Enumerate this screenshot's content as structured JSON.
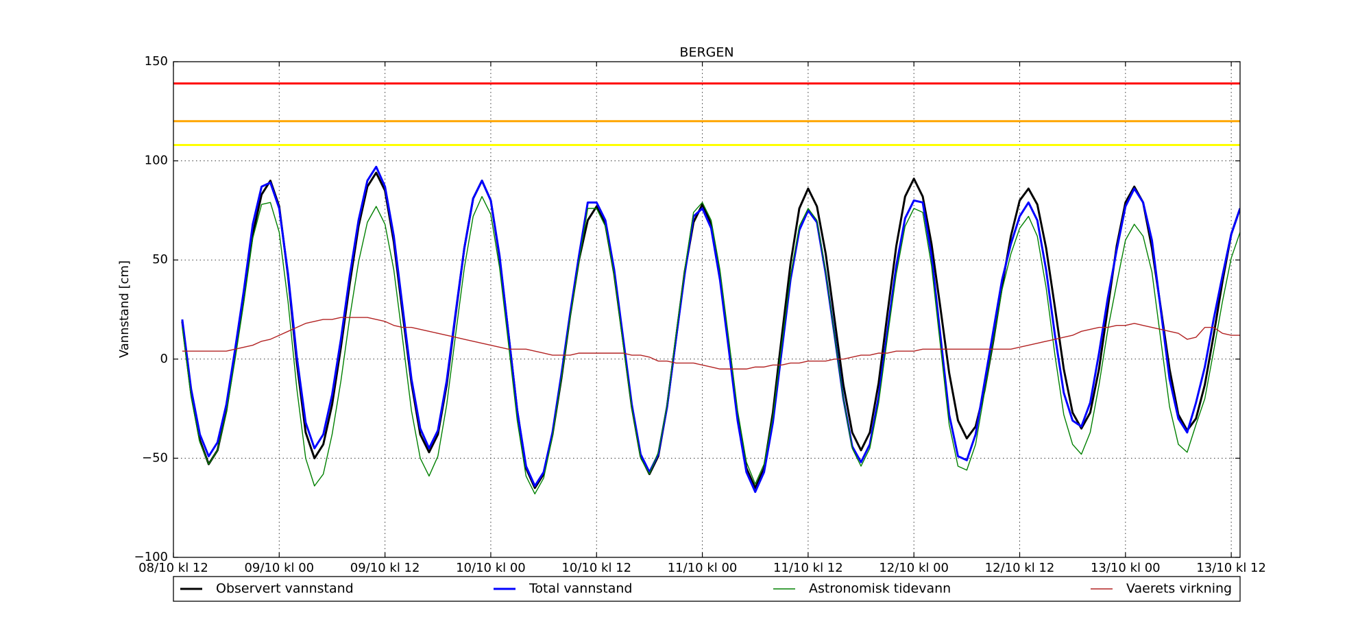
{
  "chart_data": {
    "type": "line",
    "title": "BERGEN",
    "y_label": "Vannstand [cm]",
    "grid": true,
    "legend_position": "below",
    "xlim": [
      0,
      121
    ],
    "xticks": [
      {
        "value": 0,
        "label": "08/10 kl 12"
      },
      {
        "value": 12,
        "label": "09/10 kl 00"
      },
      {
        "value": 24,
        "label": "09/10 kl 12"
      },
      {
        "value": 36,
        "label": "10/10 kl 00"
      },
      {
        "value": 48,
        "label": "10/10 kl 12"
      },
      {
        "value": 60,
        "label": "11/10 kl 00"
      },
      {
        "value": 72,
        "label": "11/10 kl 12"
      },
      {
        "value": 84,
        "label": "12/10 kl 00"
      },
      {
        "value": 96,
        "label": "12/10 kl 12"
      },
      {
        "value": 108,
        "label": "13/10 kl 00"
      },
      {
        "value": 120,
        "label": "13/10 kl 12"
      }
    ],
    "ylim": [
      -100,
      150
    ],
    "yticks": [
      {
        "value": -100,
        "label": "−100"
      },
      {
        "value": -50,
        "label": "−50"
      },
      0,
      50,
      100,
      150
    ],
    "reference_lines": [
      {
        "value": 139,
        "color": "#ff0000"
      },
      {
        "value": 120,
        "color": "#ffa500"
      },
      {
        "value": 108,
        "color": "#ffff00"
      }
    ],
    "x": [
      1,
      2,
      3,
      4,
      5,
      6,
      7,
      8,
      9,
      10,
      11,
      12,
      13,
      14,
      15,
      16,
      17,
      18,
      19,
      20,
      21,
      22,
      23,
      24,
      25,
      26,
      27,
      28,
      29,
      30,
      31,
      32,
      33,
      34,
      35,
      36,
      37,
      38,
      39,
      40,
      41,
      42,
      43,
      44,
      45,
      46,
      47,
      48,
      49,
      50,
      51,
      52,
      53,
      54,
      55,
      56,
      57,
      58,
      59,
      60,
      61,
      62,
      63,
      64,
      65,
      66,
      67,
      68,
      69,
      70,
      71,
      72,
      73,
      74,
      75,
      76,
      77,
      78,
      79,
      80,
      81,
      82,
      83,
      84,
      85,
      86,
      87,
      88,
      89,
      90,
      91,
      92,
      93,
      94,
      95,
      96,
      97,
      98,
      99,
      100,
      101,
      102,
      103,
      104,
      105,
      106,
      107,
      108,
      109,
      110,
      111,
      112,
      113,
      114,
      115,
      116,
      117,
      118,
      119,
      120,
      121
    ],
    "series": [
      {
        "name": "Observert vannstand",
        "color": "#000000",
        "width": 3,
        "values": [
          19,
          -17,
          -41,
          -53,
          -46,
          -26,
          3,
          34,
          63,
          83,
          90,
          77,
          42,
          -2,
          -37,
          -50,
          -43,
          -23,
          6,
          38,
          67,
          87,
          94,
          85,
          59,
          23,
          -12,
          -38,
          -47,
          -38,
          -13,
          22,
          56,
          81,
          90,
          80,
          51,
          13,
          -26,
          -55,
          -65,
          -58,
          -38,
          -10,
          22,
          50,
          70,
          77,
          68,
          43,
          10,
          -24,
          -49,
          -58,
          -49,
          -24,
          10,
          44,
          69,
          78,
          68,
          42,
          7,
          -29,
          -55,
          -65,
          -55,
          -27,
          11,
          48,
          76,
          86,
          77,
          53,
          20,
          -13,
          -37,
          -46,
          -37,
          -12,
          23,
          57,
          82,
          91,
          82,
          58,
          26,
          -7,
          -31,
          -40,
          -34,
          -16,
          9,
          37,
          62,
          80,
          86,
          78,
          56,
          26,
          -5,
          -27,
          -35,
          -27,
          -5,
          26,
          57,
          79,
          87,
          79,
          56,
          26,
          -5,
          -28,
          -36,
          -30,
          -13,
          12,
          39,
          63,
          76
        ]
      },
      {
        "name": "Total vannstand",
        "color": "#0000ff",
        "width": 3,
        "values": [
          20,
          -15,
          -38,
          -49,
          -42,
          -23,
          5,
          35,
          68,
          87,
          89,
          76,
          43,
          1,
          -32,
          -45,
          -38,
          -18,
          10,
          42,
          70,
          90,
          97,
          87,
          62,
          26,
          -10,
          -35,
          -45,
          -36,
          -11,
          23,
          56,
          81,
          90,
          80,
          52,
          13,
          -26,
          -54,
          -64,
          -57,
          -37,
          -8,
          23,
          52,
          79,
          79,
          70,
          45,
          11,
          -23,
          -48,
          -57,
          -48,
          -24,
          10,
          43,
          72,
          76,
          66,
          40,
          5,
          -31,
          -57,
          -67,
          -57,
          -32,
          4,
          40,
          65,
          75,
          69,
          43,
          12,
          -20,
          -44,
          -52,
          -43,
          -19,
          14,
          47,
          71,
          80,
          79,
          52,
          12,
          -28,
          -49,
          -51,
          -38,
          -12,
          14,
          40,
          58,
          72,
          79,
          70,
          45,
          12,
          -17,
          -31,
          -34,
          -22,
          3,
          31,
          55,
          77,
          86,
          79,
          60,
          25,
          -10,
          -30,
          -37,
          -22,
          -4,
          20,
          42,
          63,
          76
        ]
      },
      {
        "name": "Astronomisk tidevann",
        "color": "#008000",
        "width": 1.4,
        "values": [
          16,
          -19,
          -42,
          -53,
          -46,
          -27,
          0,
          29,
          61,
          78,
          79,
          64,
          29,
          -15,
          -50,
          -64,
          -58,
          -38,
          -11,
          21,
          49,
          69,
          77,
          68,
          45,
          10,
          -26,
          -50,
          -59,
          -49,
          -23,
          12,
          46,
          72,
          82,
          73,
          46,
          8,
          -31,
          -59,
          -68,
          -60,
          -39,
          -10,
          21,
          49,
          76,
          76,
          67,
          42,
          8,
          -25,
          -50,
          -58,
          -47,
          -23,
          12,
          45,
          74,
          79,
          70,
          45,
          10,
          -26,
          -52,
          -63,
          -53,
          -29,
          7,
          42,
          67,
          76,
          70,
          44,
          12,
          -20,
          -45,
          -54,
          -45,
          -22,
          11,
          43,
          67,
          76,
          74,
          47,
          7,
          -33,
          -54,
          -56,
          -43,
          -17,
          9,
          35,
          53,
          66,
          72,
          62,
          36,
          2,
          -28,
          -43,
          -48,
          -37,
          -13,
          15,
          38,
          60,
          68,
          62,
          44,
          10,
          -24,
          -43,
          -47,
          -33,
          -20,
          4,
          29,
          51,
          64
        ]
      },
      {
        "name": "Vaerets virkning",
        "color": "#b22222",
        "width": 1.4,
        "values": [
          4,
          4,
          4,
          4,
          4,
          4,
          5,
          6,
          7,
          9,
          10,
          12,
          14,
          16,
          18,
          19,
          20,
          20,
          21,
          21,
          21,
          21,
          20,
          19,
          17,
          16,
          16,
          15,
          14,
          13,
          12,
          11,
          10,
          9,
          8,
          7,
          6,
          5,
          5,
          5,
          4,
          3,
          2,
          2,
          2,
          3,
          3,
          3,
          3,
          3,
          3,
          2,
          2,
          1,
          -1,
          -1,
          -2,
          -2,
          -2,
          -3,
          -4,
          -5,
          -5,
          -5,
          -5,
          -4,
          -4,
          -3,
          -3,
          -2,
          -2,
          -1,
          -1,
          -1,
          0,
          0,
          1,
          2,
          2,
          3,
          3,
          4,
          4,
          4,
          5,
          5,
          5,
          5,
          5,
          5,
          5,
          5,
          5,
          5,
          5,
          6,
          7,
          8,
          9,
          10,
          11,
          12,
          14,
          15,
          16,
          16,
          17,
          17,
          18,
          17,
          16,
          15,
          14,
          13,
          10,
          11,
          16,
          16,
          13,
          12,
          12
        ]
      }
    ]
  }
}
